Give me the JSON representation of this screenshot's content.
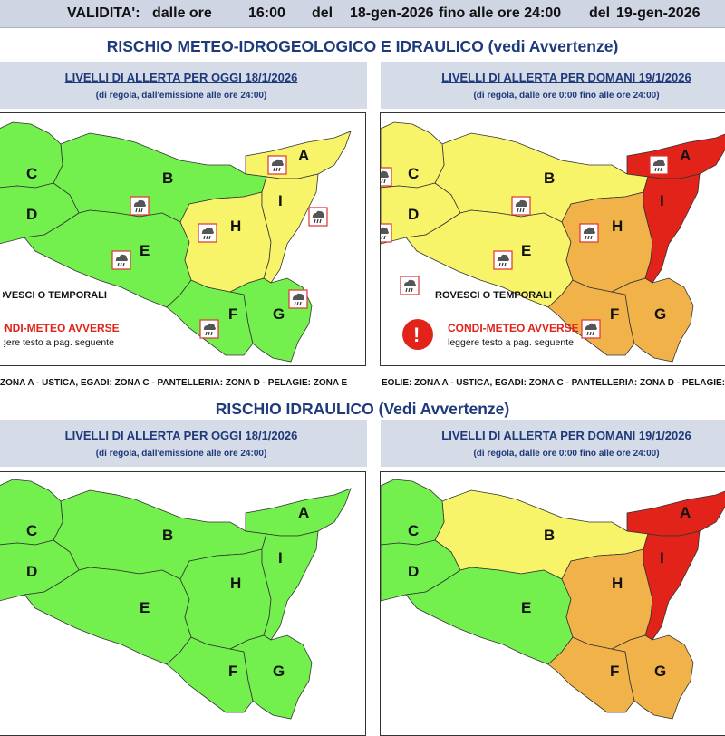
{
  "header": {
    "validita": "VALIDITA':",
    "dalle_ore_label": "dalle ore",
    "time_from": "16:00",
    "del1": "del",
    "date_from": "18-gen-2026",
    "fino_label": "fino alle ore 24:00",
    "del2": "del",
    "date_to": "19-gen-2026"
  },
  "section1": {
    "title": "RISCHIO METEO-IDROGEOLOGICO E IDRAULICO (vedi Avvertenze)"
  },
  "section2": {
    "title": "RISCHIO IDRAULICO (Vedi Avvertenze)"
  },
  "panels": {
    "today_title": "LIVELLI DI ALLERTA PER OGGI 18/1/2026",
    "today_sub": "(di regola, dall'emissione alle ore 24:00)",
    "tomorrow_title": "LIVELLI DI ALLERTA PER DOMANI 19/1/2026",
    "tomorrow_sub": "(di regola, dalle ore 0:00 fino alle ore 24:00)"
  },
  "legend": {
    "rovesci": "ROVESCI O TEMPORALI",
    "rovesci_cut": "ROVESCI O TEMPORALI",
    "condi": "CONDI-METEO AVVERSE",
    "leggere": "leggere testo a pag. seguente"
  },
  "footnote": {
    "left": "ZONA A - USTICA, EGADI: ZONA C - PANTELLERIA: ZONA D - PELAGIE: ZONA E",
    "right": "EOLIE: ZONA A - USTICA, EGADI: ZONA C - PANTELLERIA: ZONA D - PELAGIE: ZONA E"
  },
  "zones": [
    "A",
    "B",
    "C",
    "D",
    "E",
    "F",
    "G",
    "H",
    "I"
  ],
  "alert_colors": {
    "green": "#74f04e",
    "yellow": "#f8f46a",
    "orange": "#f2b24a",
    "red": "#e2231a"
  },
  "map_today_meteo": {
    "A": "yellow",
    "B": "green",
    "C": "green",
    "D": "green",
    "E": "green",
    "F": "green",
    "G": "green",
    "H": "yellow",
    "I": "yellow",
    "storm_icons_in_zones": [
      "A",
      "B",
      "E",
      "H",
      "I",
      "F",
      "G"
    ]
  },
  "map_tomorrow_meteo": {
    "A": "red",
    "B": "yellow",
    "C": "yellow",
    "D": "yellow",
    "E": "yellow",
    "F": "orange",
    "G": "orange",
    "H": "orange",
    "I": "red",
    "storm_icons_in_zones": [
      "A",
      "B",
      "C",
      "D",
      "E",
      "H",
      "F"
    ]
  },
  "map_today_hydraulic": {
    "A": "green",
    "B": "green",
    "C": "green",
    "D": "green",
    "E": "green",
    "F": "green",
    "G": "green",
    "H": "green",
    "I": "green"
  },
  "map_tomorrow_hydraulic": {
    "A": "red",
    "B": "yellow",
    "C": "green",
    "D": "green",
    "E": "green",
    "F": "orange",
    "G": "orange",
    "H": "orange",
    "I": "red"
  },
  "icons": {
    "storm": "storm-cloud-icon",
    "alert": "exclamation-circle-icon"
  }
}
